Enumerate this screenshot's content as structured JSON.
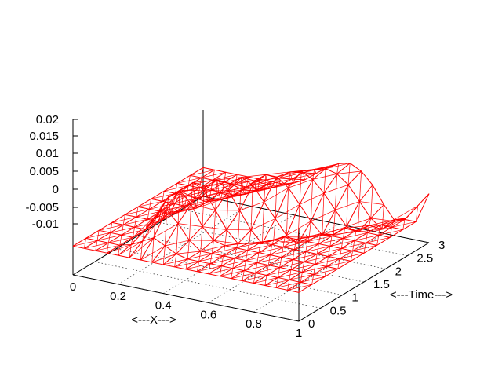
{
  "chart_data": {
    "type": "surface",
    "title": "",
    "xlabel": "<---X--->",
    "ylabel": "<---Time--->",
    "zlabel": "",
    "xlim": [
      0,
      1
    ],
    "ylim": [
      0,
      3
    ],
    "zlim": [
      -0.01,
      0.02
    ],
    "x_ticks": [
      "0",
      "0.2",
      "0.4",
      "0.6",
      "0.8",
      "1"
    ],
    "y_ticks": [
      "0",
      "0.5",
      "1",
      "1.5",
      "2",
      "2.5",
      "3"
    ],
    "z_ticks": [
      "0.02",
      "0.015",
      "0.01",
      "0.005",
      "0",
      "-0.005",
      "-0.01"
    ],
    "grid": true,
    "color": "#ff0000",
    "x": [
      0,
      0.05,
      0.1,
      0.15,
      0.2,
      0.25,
      0.3,
      0.35,
      0.4,
      0.45,
      0.5,
      0.55,
      0.6,
      0.65,
      0.7,
      0.75,
      0.8,
      0.85,
      0.9,
      0.95,
      1.0
    ],
    "t": [
      0,
      0.3,
      0.6,
      0.9,
      1.2,
      1.5,
      1.8,
      2.1,
      2.4,
      2.7,
      3.0
    ],
    "z": [
      [
        0.0,
        0.0,
        0.0,
        0.0,
        0.0,
        0.0,
        0.0,
        0.0,
        0.0,
        0.0,
        0.0,
        0.0,
        0.0,
        0.0,
        0.0,
        0.0,
        0.0,
        0.0,
        0.0,
        0.0,
        0.0
      ],
      [
        0.0,
        0.0,
        0.0,
        0.0,
        0.001,
        0.003,
        0.005,
        0.003,
        0.001,
        0.0,
        0.0,
        0.0,
        0.0,
        0.0,
        0.0,
        0.0,
        0.0,
        0.0,
        0.0,
        0.0,
        0.0
      ],
      [
        0.0,
        0.0,
        0.0,
        0.0,
        0.003,
        0.008,
        0.012,
        0.008,
        0.003,
        0.0,
        0.0,
        0.0,
        0.0,
        0.0,
        0.0,
        0.0,
        0.0,
        0.0,
        0.0,
        0.0,
        0.0
      ],
      [
        0.0,
        0.0,
        0.0,
        0.0,
        0.006,
        0.013,
        0.016,
        0.012,
        0.005,
        0.001,
        0.0,
        0.0,
        0.0,
        0.0,
        0.0,
        0.0,
        0.0,
        0.0,
        0.0,
        0.0,
        0.0
      ],
      [
        0.0,
        0.0,
        0.0,
        0.0,
        0.004,
        0.012,
        0.016,
        0.014,
        0.008,
        0.002,
        -0.002,
        -0.001,
        0.0,
        0.0,
        0.0,
        0.0,
        0.0,
        0.0,
        0.0,
        0.0,
        0.0
      ],
      [
        0.0,
        0.0,
        0.0,
        0.0,
        0.002,
        0.007,
        0.012,
        0.015,
        0.012,
        0.006,
        0.0,
        -0.004,
        -0.002,
        0.0,
        0.0,
        0.0,
        0.0,
        0.0,
        0.0,
        0.0,
        0.0
      ],
      [
        0.0,
        0.0,
        0.0,
        0.0,
        0.0,
        0.003,
        0.007,
        0.011,
        0.014,
        0.012,
        0.007,
        0.002,
        -0.003,
        -0.005,
        -0.002,
        0.0,
        0.0,
        0.0,
        0.0,
        0.0,
        0.0
      ],
      [
        0.0,
        0.0,
        0.0,
        0.0,
        0.0,
        0.001,
        0.003,
        0.006,
        0.01,
        0.013,
        0.013,
        0.01,
        0.005,
        0.0,
        -0.004,
        -0.003,
        0.0,
        0.0,
        0.0,
        0.0,
        0.0
      ],
      [
        0.0,
        0.0,
        0.0,
        0.0,
        0.0,
        0.0,
        0.001,
        0.003,
        0.006,
        0.009,
        0.012,
        0.013,
        0.011,
        0.007,
        0.002,
        -0.003,
        -0.004,
        -0.001,
        0.0,
        0.0,
        0.0
      ],
      [
        0.0,
        0.0,
        0.0,
        0.0,
        0.0,
        0.0,
        0.0,
        0.001,
        0.003,
        0.006,
        0.009,
        0.011,
        0.012,
        0.011,
        0.008,
        0.003,
        -0.002,
        -0.005,
        -0.001,
        0.0,
        0.0
      ],
      [
        0.0,
        0.0,
        0.0,
        0.0,
        0.0,
        0.0,
        0.0,
        0.0,
        0.001,
        0.003,
        0.006,
        0.009,
        0.011,
        0.012,
        0.01,
        0.006,
        0.0,
        -0.005,
        -0.003,
        0.002,
        0.007
      ]
    ]
  }
}
